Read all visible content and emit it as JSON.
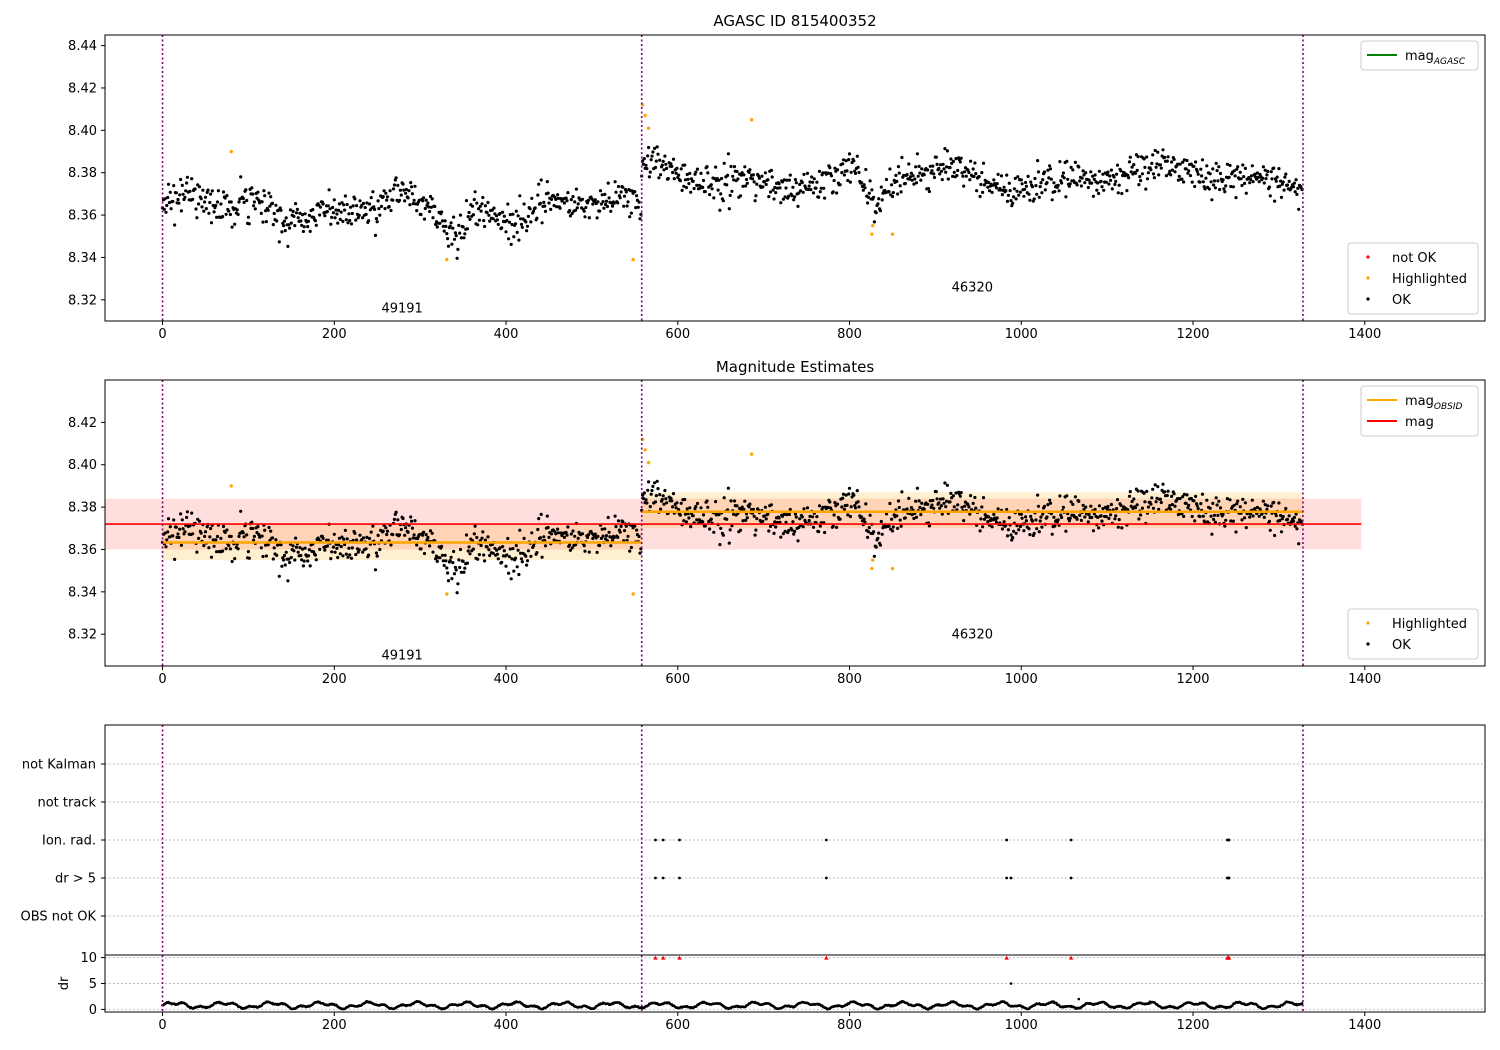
{
  "figure": {
    "colors": {
      "ok": "#000000",
      "highlighted": "#ffa500",
      "not_ok": "#ff0000",
      "mean": "#ff0000",
      "obs_mean": "#ffa500",
      "agasc": "#008000",
      "divider": "#800080"
    }
  },
  "chart_data": [
    {
      "id": "top",
      "type": "scatter",
      "title": "AGASC ID 815400352",
      "xlabel": "",
      "ylabel": "",
      "xlim": [
        -67,
        1540
      ],
      "ylim": [
        8.31,
        8.445
      ],
      "xticks": [
        "0",
        "200",
        "400",
        "600",
        "800",
        "1000",
        "1200",
        "1400"
      ],
      "yticks": [
        "8.32",
        "8.34",
        "8.36",
        "8.38",
        "8.40",
        "8.42",
        "8.44"
      ],
      "grid": false,
      "dividers": [
        0,
        558,
        1328
      ],
      "obsids": [
        {
          "label": "49191",
          "x": 279,
          "y": 8.314
        },
        {
          "label": "46320",
          "x": 943,
          "y": 8.324
        }
      ],
      "segments": [
        {
          "x0": 0,
          "x1": 558,
          "mean": 8.3633,
          "amplitude": 0.007,
          "noise": 0.0075,
          "dip_at": 340,
          "dip_depth": 0.012
        },
        {
          "x0": 558,
          "x1": 1328,
          "mean": 8.3778,
          "amplitude": 0.006,
          "noise": 0.0072,
          "dip_at": 830,
          "dip_depth": 0.017
        }
      ],
      "highlighted_points": [
        {
          "x": 80,
          "y": 8.39
        },
        {
          "x": 331,
          "y": 8.339
        },
        {
          "x": 548,
          "y": 8.339
        },
        {
          "x": 559,
          "y": 8.412
        },
        {
          "x": 562,
          "y": 8.407
        },
        {
          "x": 566,
          "y": 8.401
        },
        {
          "x": 686,
          "y": 8.405
        },
        {
          "x": 826,
          "y": 8.351
        },
        {
          "x": 827,
          "y": 8.355
        },
        {
          "x": 850,
          "y": 8.351
        }
      ],
      "legends": [
        {
          "position": "upper-right",
          "entries": [
            {
              "label": "mag",
              "subscript": "AGASC",
              "marker": "line",
              "color": "#008000"
            }
          ]
        },
        {
          "position": "lower-right",
          "entries": [
            {
              "label": "not OK",
              "marker": "dot",
              "color": "#ff0000"
            },
            {
              "label": "Highlighted",
              "marker": "dot",
              "color": "#ffa500"
            },
            {
              "label": "OK",
              "marker": "dot",
              "color": "#000000"
            }
          ]
        }
      ]
    },
    {
      "id": "middle",
      "type": "scatter",
      "title": "Magnitude Estimates",
      "xlabel": "",
      "ylabel": "",
      "xlim": [
        -67,
        1540
      ],
      "ylim": [
        8.305,
        8.44
      ],
      "xticks": [
        "0",
        "200",
        "400",
        "600",
        "800",
        "1000",
        "1200",
        "1400"
      ],
      "yticks": [
        "8.32",
        "8.34",
        "8.36",
        "8.38",
        "8.40",
        "8.42"
      ],
      "grid": false,
      "dividers": [
        0,
        558,
        1328
      ],
      "obsids": [
        {
          "label": "49191",
          "x": 279,
          "y": 8.308
        },
        {
          "label": "46320",
          "x": 943,
          "y": 8.318
        }
      ],
      "mag_mean": {
        "value": 8.372,
        "band": [
          8.36,
          8.384
        ],
        "x_range": [
          -67,
          1396
        ]
      },
      "obsid_means": [
        {
          "x0": 0,
          "x1": 558,
          "value": 8.3633,
          "band": [
            8.355,
            8.372
          ]
        },
        {
          "x0": 558,
          "x1": 1328,
          "value": 8.3778,
          "band": [
            8.37,
            8.387
          ]
        }
      ],
      "legends": [
        {
          "position": "upper-right",
          "entries": [
            {
              "label": "mag",
              "subscript": "OBSID",
              "marker": "line",
              "color": "#ffa500"
            },
            {
              "label": "mag",
              "marker": "line",
              "color": "#ff0000"
            }
          ]
        },
        {
          "position": "lower-right",
          "entries": [
            {
              "label": "Highlighted",
              "marker": "dot",
              "color": "#ffa500"
            },
            {
              "label": "OK",
              "marker": "dot",
              "color": "#000000"
            }
          ]
        }
      ]
    },
    {
      "id": "flags",
      "type": "scatter",
      "xlim": [
        -67,
        1540
      ],
      "categories": [
        "not Kalman",
        "not track",
        "Ion. rad.",
        "dr > 5",
        "OBS not OK"
      ],
      "grid": true,
      "dividers": [
        0,
        558,
        1328
      ],
      "flagged": {
        "Ion. rad.": [
          574,
          583,
          602,
          773,
          983,
          1058,
          1240,
          1241,
          1242
        ],
        "dr > 5": [
          574,
          583,
          602,
          773,
          983,
          988,
          1058,
          1240,
          1241,
          1242
        ]
      }
    },
    {
      "id": "dr",
      "type": "scatter",
      "ylabel": "dr",
      "xlim": [
        -67,
        1540
      ],
      "ylim": [
        -0.5,
        10.5
      ],
      "xticks": [
        "0",
        "200",
        "400",
        "600",
        "800",
        "1000",
        "1200",
        "1400"
      ],
      "yticks": [
        "0",
        "5",
        "10"
      ],
      "grid": true,
      "dividers": [
        0,
        558,
        1328
      ],
      "clipped": {
        "value": 10,
        "x": [
          574,
          583,
          602,
          773,
          983,
          1058,
          1240,
          1241,
          1242
        ]
      },
      "outliers": [
        {
          "x": 988,
          "y": 5
        },
        {
          "x": 1067,
          "y": 2
        },
        {
          "x": 1150,
          "y": 1.5
        }
      ]
    }
  ]
}
